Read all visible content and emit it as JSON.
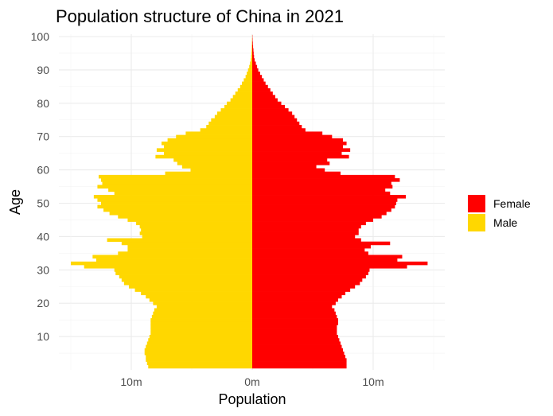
{
  "chart_data": {
    "type": "bar",
    "orientation": "horizontal",
    "title": "Population structure of China in 2021",
    "xlabel": "Population",
    "ylabel": "Age",
    "x_tick_labels": [
      "10m",
      "0m",
      "10m"
    ],
    "x_tick_values": [
      -10,
      0,
      10
    ],
    "x_unit": "millions",
    "xlim": [
      -15,
      15
    ],
    "y_ticks": [
      10,
      20,
      30,
      40,
      50,
      60,
      70,
      80,
      90,
      100
    ],
    "ylim": [
      0,
      100
    ],
    "grid": true,
    "legend": {
      "position": "right",
      "title": ""
    },
    "ages": [
      1,
      2,
      3,
      4,
      5,
      6,
      7,
      8,
      9,
      10,
      11,
      12,
      13,
      14,
      15,
      16,
      17,
      18,
      19,
      20,
      21,
      22,
      23,
      24,
      25,
      26,
      27,
      28,
      29,
      30,
      31,
      32,
      33,
      34,
      35,
      36,
      37,
      38,
      39,
      40,
      41,
      42,
      43,
      44,
      45,
      46,
      47,
      48,
      49,
      50,
      51,
      52,
      53,
      54,
      55,
      56,
      57,
      58,
      59,
      60,
      61,
      62,
      63,
      64,
      65,
      66,
      67,
      68,
      69,
      70,
      71,
      72,
      73,
      74,
      75,
      76,
      77,
      78,
      79,
      80,
      81,
      82,
      83,
      84,
      85,
      86,
      87,
      88,
      89,
      90,
      91,
      92,
      93,
      94,
      95,
      96,
      97,
      98,
      99,
      100
    ],
    "series": [
      {
        "name": "Female",
        "color": "#FF0000",
        "values": [
          7.8,
          7.8,
          7.8,
          7.7,
          7.6,
          7.5,
          7.4,
          7.3,
          7.2,
          7.1,
          7.0,
          7.0,
          7.0,
          7.1,
          7.1,
          7.0,
          6.9,
          6.8,
          6.6,
          6.9,
          7.1,
          7.4,
          7.7,
          8.1,
          8.5,
          8.9,
          9.1,
          9.4,
          9.6,
          9.7,
          12.8,
          14.5,
          12.0,
          12.4,
          9.6,
          9.3,
          9.8,
          11.4,
          9.0,
          8.5,
          8.8,
          8.8,
          9.0,
          9.4,
          10.0,
          10.7,
          11.1,
          11.5,
          11.8,
          11.9,
          12.0,
          12.7,
          11.4,
          11.0,
          11.6,
          11.5,
          12.2,
          11.8,
          7.3,
          6.0,
          5.3,
          6.4,
          6.2,
          8.0,
          7.4,
          8.1,
          7.5,
          7.8,
          7.5,
          6.6,
          5.8,
          4.4,
          4.1,
          3.9,
          3.7,
          3.5,
          3.3,
          3.0,
          2.7,
          2.4,
          2.1,
          1.9,
          1.7,
          1.5,
          1.3,
          1.1,
          0.95,
          0.8,
          0.65,
          0.5,
          0.4,
          0.3,
          0.2,
          0.15,
          0.12,
          0.1,
          0.07,
          0.05,
          0.03,
          0.02
        ]
      },
      {
        "name": "Male",
        "color": "#FFD700",
        "values": [
          8.6,
          8.7,
          8.8,
          8.8,
          8.9,
          8.9,
          8.8,
          8.7,
          8.6,
          8.5,
          8.4,
          8.4,
          8.4,
          8.4,
          8.4,
          8.3,
          8.2,
          8.1,
          7.9,
          8.2,
          8.5,
          8.8,
          9.2,
          9.7,
          10.2,
          10.6,
          10.8,
          11.0,
          11.3,
          11.4,
          13.9,
          15.0,
          12.9,
          13.2,
          11.1,
          10.3,
          10.3,
          10.8,
          12.0,
          9.1,
          9.3,
          9.2,
          9.3,
          9.6,
          10.3,
          11.1,
          11.8,
          12.3,
          12.8,
          12.5,
          12.8,
          13.1,
          11.4,
          11.9,
          12.8,
          12.4,
          12.5,
          12.7,
          7.2,
          5.1,
          5.8,
          6.2,
          6.5,
          8.0,
          7.3,
          7.9,
          7.3,
          7.5,
          7.0,
          6.3,
          5.5,
          4.3,
          3.8,
          3.6,
          3.4,
          3.1,
          2.9,
          2.6,
          2.3,
          2.1,
          1.8,
          1.6,
          1.4,
          1.2,
          1.0,
          0.85,
          0.7,
          0.55,
          0.45,
          0.35,
          0.25,
          0.18,
          0.12,
          0.09,
          0.07,
          0.05,
          0.04,
          0.03,
          0.02,
          0.01
        ]
      }
    ]
  }
}
